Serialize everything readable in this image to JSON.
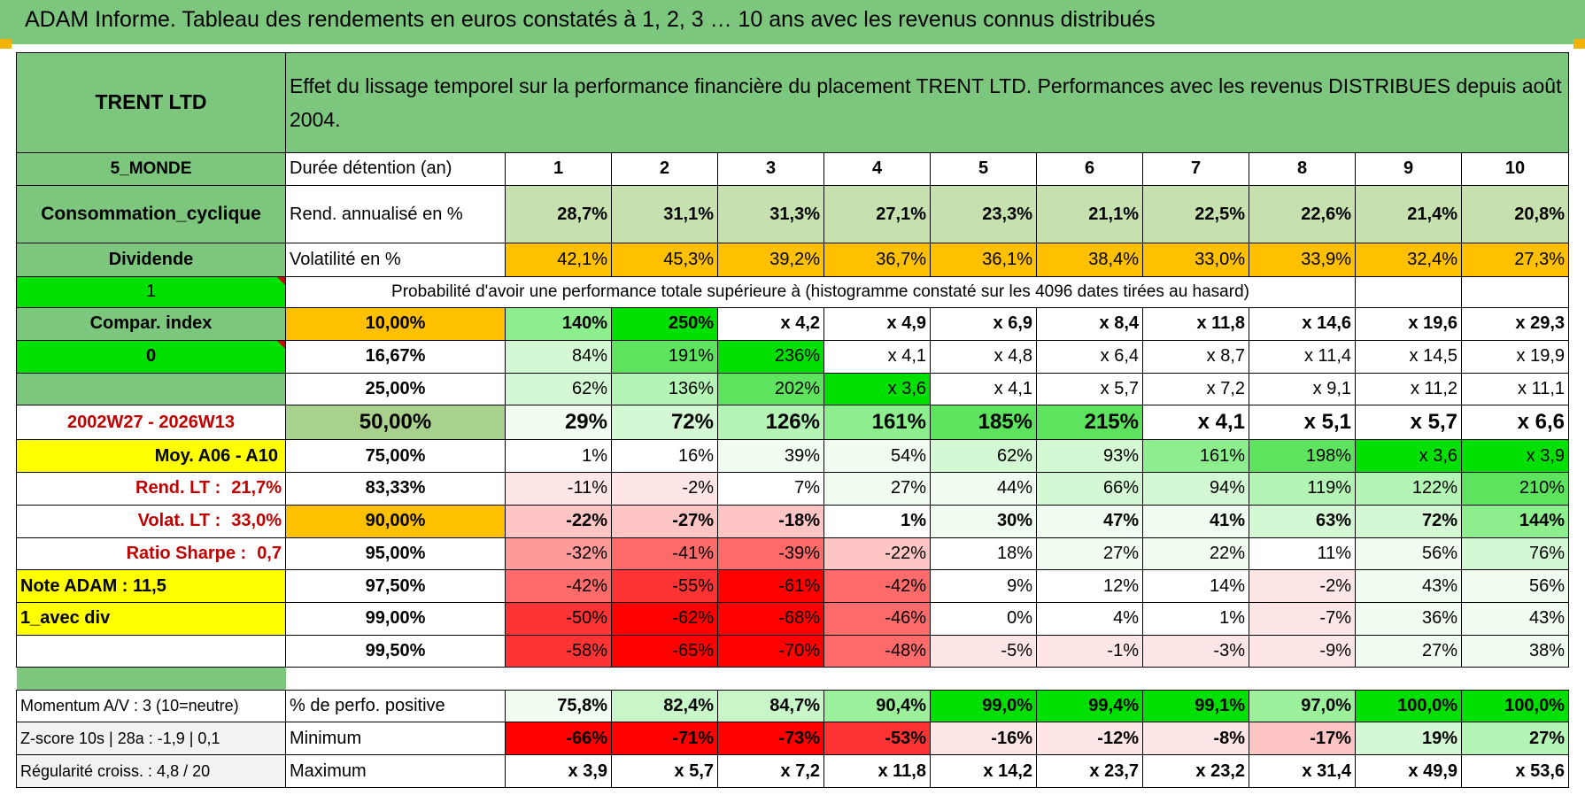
{
  "title": "ADAM Informe. Tableau des rendements en euros constatés à 1, 2, 3 … 10 ans avec les revenus connus distribués",
  "colors": {
    "green_header": "#7dc67d",
    "orange": "#ffc000",
    "yellow": "#ffff00",
    "bright_green": "#00e000",
    "red_text": "#c00000"
  },
  "header": {
    "name": "TRENT LTD",
    "description": "Effet du lissage temporel sur la performance financière du placement TRENT LTD. Performances avec les revenus DISTRIBUES depuis août 2004."
  },
  "side": {
    "region": "5_MONDE",
    "sector": "Consommation_cyclique",
    "mode": "Dividende",
    "index_flag": "1",
    "compar_label": "Compar. index",
    "compar_value": "0",
    "period": "2002W27 - 2026W13",
    "moy": "Moy. A06 - A10",
    "rend_lt_label": "Rend. LT :",
    "rend_lt_value": "21,7%",
    "volat_lt_label": "Volat. LT :",
    "volat_lt_value": "33,0%",
    "sharpe_label": "Ratio Sharpe :",
    "sharpe_value": "0,7",
    "note": "Note ADAM : 11,5",
    "div": "1_avec div"
  },
  "years": {
    "label": "Durée détention (an)",
    "values": [
      "1",
      "2",
      "3",
      "4",
      "5",
      "6",
      "7",
      "8",
      "9",
      "10"
    ]
  },
  "rend": {
    "label": "Rend. annualisé en %",
    "values": [
      "28,7%",
      "31,1%",
      "31,3%",
      "27,1%",
      "23,3%",
      "21,1%",
      "22,5%",
      "22,6%",
      "21,4%",
      "20,8%"
    ]
  },
  "volat": {
    "label": "Volatilité en %",
    "values": [
      "42,1%",
      "45,3%",
      "39,2%",
      "36,7%",
      "36,1%",
      "38,4%",
      "33,0%",
      "33,9%",
      "32,4%",
      "27,3%"
    ]
  },
  "prob_title": "Probabilité d'avoir une performance totale supérieure à (histogramme constaté sur les 4096 dates tirées au hasard)",
  "rows": [
    {
      "pct": "10,00%",
      "values": [
        "140%",
        "250%",
        "x 4,2",
        "x 4,9",
        "x 6,9",
        "x 8,4",
        "x 11,8",
        "x 14,6",
        "x 19,6",
        "x 29,3"
      ]
    },
    {
      "pct": "16,67%",
      "values": [
        "84%",
        "191%",
        "236%",
        "x 4,1",
        "x 4,8",
        "x 6,4",
        "x 8,7",
        "x 11,4",
        "x 14,5",
        "x 19,9"
      ]
    },
    {
      "pct": "25,00%",
      "values": [
        "62%",
        "136%",
        "202%",
        "x 3,6",
        "x 4,1",
        "x 5,7",
        "x 7,2",
        "x 9,1",
        "x 11,2",
        "x 11,1"
      ]
    },
    {
      "pct": "50,00%",
      "values": [
        "29%",
        "72%",
        "126%",
        "161%",
        "185%",
        "215%",
        "x 4,1",
        "x 5,1",
        "x 5,7",
        "x 6,6"
      ]
    },
    {
      "pct": "75,00%",
      "values": [
        "1%",
        "16%",
        "39%",
        "54%",
        "62%",
        "93%",
        "161%",
        "198%",
        "x 3,6",
        "x 3,9"
      ]
    },
    {
      "pct": "83,33%",
      "values": [
        "-11%",
        "-2%",
        "7%",
        "27%",
        "44%",
        "66%",
        "94%",
        "119%",
        "122%",
        "210%"
      ]
    },
    {
      "pct": "90,00%",
      "values": [
        "-22%",
        "-27%",
        "-18%",
        "1%",
        "30%",
        "47%",
        "41%",
        "63%",
        "72%",
        "144%"
      ]
    },
    {
      "pct": "95,00%",
      "values": [
        "-32%",
        "-41%",
        "-39%",
        "-22%",
        "18%",
        "27%",
        "22%",
        "11%",
        "56%",
        "76%"
      ]
    },
    {
      "pct": "97,50%",
      "values": [
        "-42%",
        "-55%",
        "-61%",
        "-42%",
        "9%",
        "12%",
        "14%",
        "-2%",
        "43%",
        "56%"
      ]
    },
    {
      "pct": "99,00%",
      "values": [
        "-50%",
        "-62%",
        "-68%",
        "-46%",
        "0%",
        "4%",
        "1%",
        "-7%",
        "36%",
        "43%"
      ]
    },
    {
      "pct": "99,50%",
      "values": [
        "-58%",
        "-65%",
        "-70%",
        "-48%",
        "-5%",
        "-1%",
        "-3%",
        "-9%",
        "27%",
        "38%"
      ]
    }
  ],
  "bottom": [
    {
      "side": "Momentum A/V : 3 (10=neutre)",
      "label": "% de perfo. positive",
      "values": [
        "75,8%",
        "82,4%",
        "84,7%",
        "90,4%",
        "99,0%",
        "99,4%",
        "99,1%",
        "97,0%",
        "100,0%",
        "100,0%"
      ]
    },
    {
      "side": "Z-score 10s | 28a : -1,9 | 0,1",
      "label": "Minimum",
      "values": [
        "-66%",
        "-71%",
        "-73%",
        "-53%",
        "-16%",
        "-12%",
        "-8%",
        "-17%",
        "19%",
        "27%"
      ]
    },
    {
      "side": "Régularité croiss. : 4,8 / 20",
      "label": "Maximum",
      "values": [
        "x 3,9",
        "x 5,7",
        "x 7,2",
        "x 11,8",
        "x 14,2",
        "x 23,7",
        "x 23,2",
        "x 31,4",
        "x 49,9",
        "x 53,6"
      ]
    }
  ]
}
